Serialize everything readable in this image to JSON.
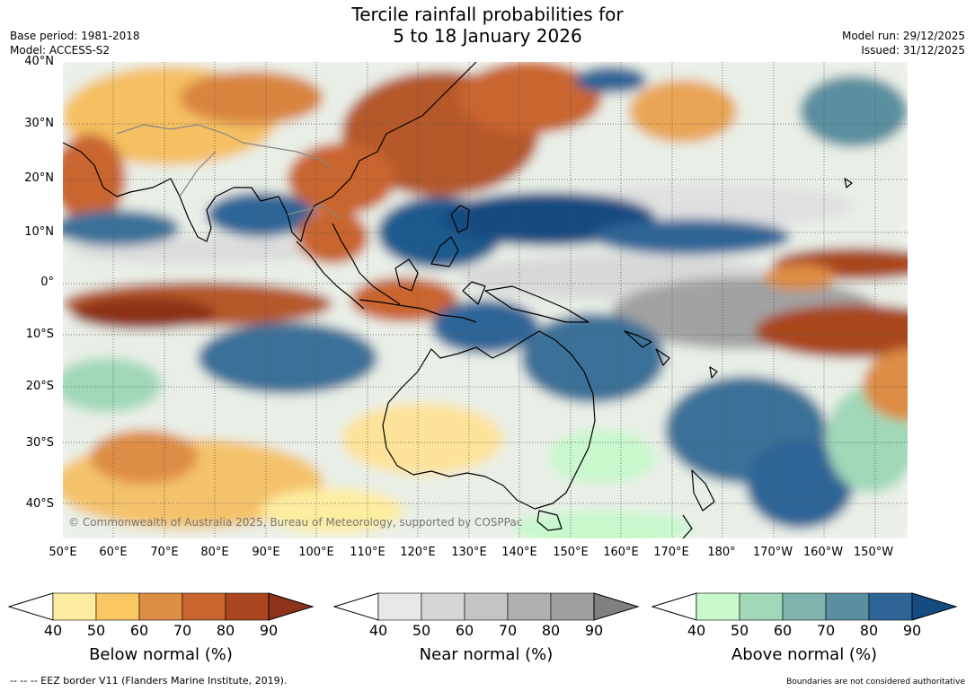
{
  "title": {
    "line1": "Tercile rainfall probabilities for",
    "line2": "5 to 18 January 2026"
  },
  "meta": {
    "base_period": "Base period: 1981-2018",
    "model": "Model: ACCESS-S2",
    "model_run": "Model run: 29/12/2025",
    "issued": "Issued: 31/12/2025"
  },
  "map": {
    "copyright": "© Commonwealth of Australia 2025, Bureau of Meteorology, supported by COSPPac",
    "lat_labels": [
      "40°N",
      "30°N",
      "20°N",
      "10°N",
      "0°",
      "10°S",
      "20°S",
      "30°S",
      "40°S"
    ],
    "lon_labels": [
      "50°E",
      "60°E",
      "70°E",
      "80°E",
      "90°E",
      "100°E",
      "110°E",
      "120°E",
      "130°E",
      "140°E",
      "150°E",
      "160°E",
      "170°E",
      "180°",
      "170°W",
      "160°W",
      "150°W"
    ],
    "colors": {
      "ocean_neutral": "#ffffff",
      "coast": "#000000",
      "border": "#888888",
      "grid": "#555555"
    }
  },
  "colorbars": [
    {
      "label": "Below normal (%)",
      "ticks": [
        "40",
        "50",
        "60",
        "70",
        "80",
        "90"
      ],
      "colors": [
        "#ffffff",
        "#fdeda0",
        "#fbc763",
        "#dd8d44",
        "#c9652f",
        "#a9461f",
        "#8d3319"
      ]
    },
    {
      "label": "Near normal (%)",
      "ticks": [
        "40",
        "50",
        "60",
        "70",
        "80",
        "90"
      ],
      "colors": [
        "#ffffff",
        "#e8e8e8",
        "#d6d6d6",
        "#c4c4c4",
        "#b0b0b0",
        "#9e9e9e",
        "#808080"
      ]
    },
    {
      "label": "Above normal (%)",
      "ticks": [
        "40",
        "50",
        "60",
        "70",
        "80",
        "90"
      ],
      "colors": [
        "#ffffff",
        "#c8f8cc",
        "#a0d8b8",
        "#7fb3ae",
        "#5a8f9f",
        "#2f6597",
        "#144c82"
      ]
    }
  ],
  "footer": {
    "left": "--  --  -- EEZ border V11 (Flanders Marine Institute, 2019).",
    "right": "Boundaries are not considered authoritative"
  }
}
